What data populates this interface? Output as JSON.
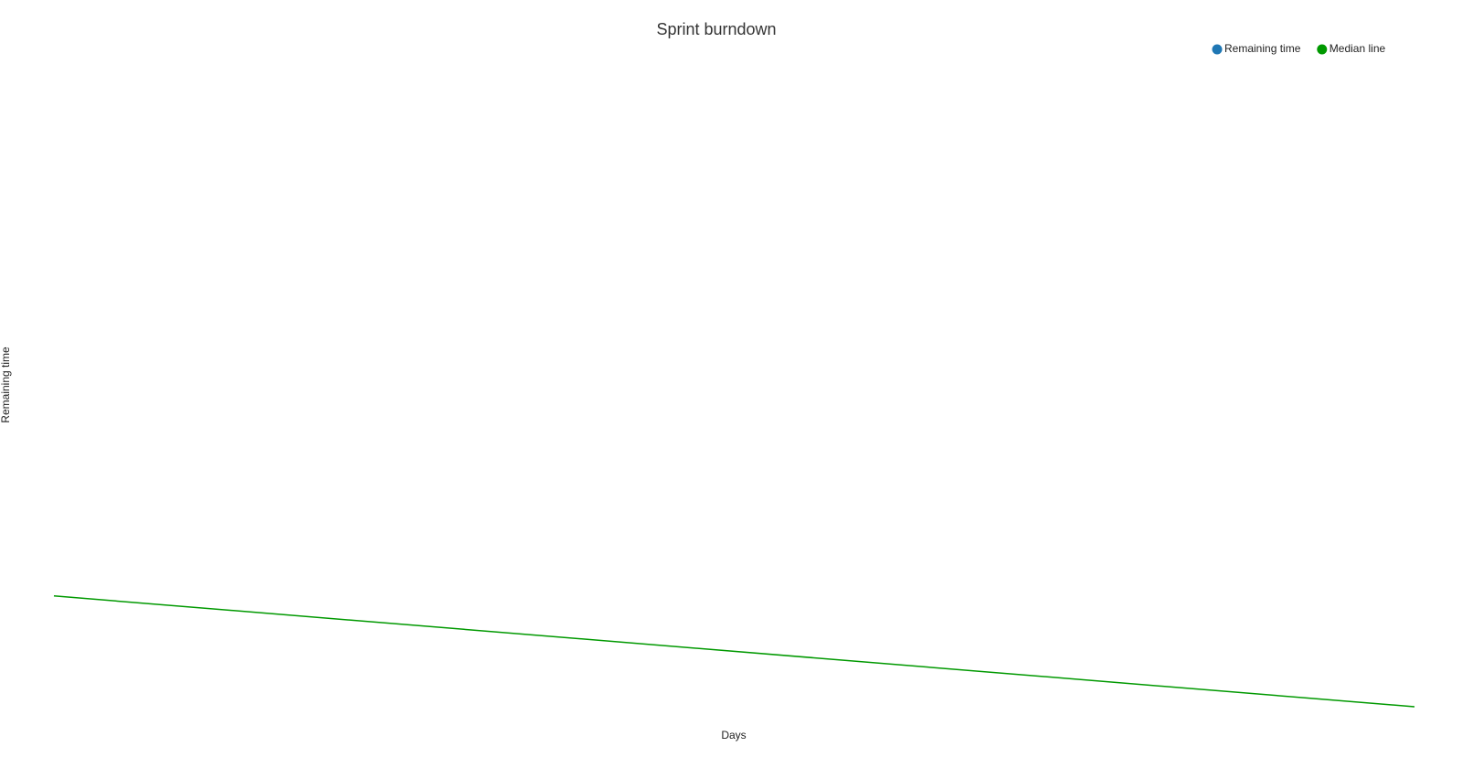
{
  "chart_data": {
    "type": "line",
    "title": "Sprint burndown",
    "x_label": "Days",
    "y_label": "Remaining time",
    "x": [
      0,
      1
    ],
    "xlim": [
      0,
      1
    ],
    "ylim": [
      0,
      1
    ],
    "legend": "top-right",
    "series": [
      {
        "name": "Remaining time",
        "color": "#1f77b4",
        "values": [
          null,
          null
        ]
      },
      {
        "name": "Median line",
        "color": "#009900",
        "values": [
          0.17,
          0
        ]
      }
    ]
  }
}
